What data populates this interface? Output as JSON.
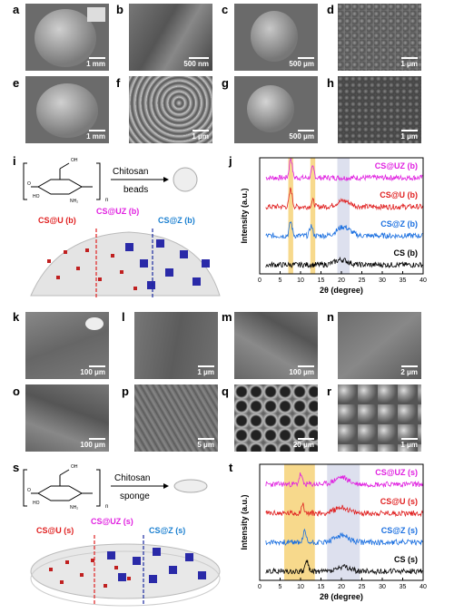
{
  "panel_letters": {
    "a": "a",
    "b": "b",
    "c": "c",
    "d": "d",
    "e": "e",
    "f": "f",
    "g": "g",
    "h": "h",
    "i": "i",
    "j": "j",
    "k": "k",
    "l": "l",
    "m": "m",
    "n": "n",
    "o": "o",
    "p": "p",
    "q": "q",
    "r": "r",
    "s": "s",
    "t": "t"
  },
  "scale_bars": {
    "a": "1 mm",
    "b": "500 nm",
    "c": "500 μm",
    "d": "1 μm",
    "e": "1 mm",
    "f": "1 μm",
    "g": "500 μm",
    "h": "1 μm",
    "k": "100 μm",
    "l": "1 μm",
    "m": "100 μm",
    "n": "2 μm",
    "o": "100 μm",
    "p": "5 μm",
    "q": "20 μm",
    "r": "1 μm"
  },
  "schematic_i": {
    "arrow_label": "Chitosan",
    "product": "beads",
    "left": "CS@U (b)",
    "middle": "CS@UZ (b)",
    "right": "CS@Z (b)",
    "colors": {
      "left": "#e02020",
      "middle": "#e020e0",
      "right": "#1a7fd0"
    }
  },
  "schematic_s": {
    "arrow_label": "Chitosan",
    "product": "sponge",
    "left": "CS@U (s)",
    "middle": "CS@UZ (s)",
    "right": "CS@Z (s)",
    "colors": {
      "left": "#e02020",
      "middle": "#e020e0",
      "right": "#1a7fd0"
    }
  },
  "chart_data": [
    {
      "panel": "j",
      "type": "line",
      "xlabel": "2θ (degree)",
      "ylabel": "Intensity (a.u.)",
      "xlim": [
        0,
        40
      ],
      "x_ticks": [
        0,
        5,
        10,
        15,
        20,
        25,
        30,
        35,
        40
      ],
      "highlight_bands": [
        {
          "from": 7,
          "to": 8.2,
          "color": "#f7d98c"
        },
        {
          "from": 12.4,
          "to": 13.6,
          "color": "#f7d98c"
        },
        {
          "from": 19,
          "to": 22,
          "color": "#dde0ee"
        }
      ],
      "series": [
        {
          "name": "CS@UZ (b)",
          "color": "#e020e0",
          "offset": 3,
          "peaks": [
            [
              7.6,
              1.0
            ],
            [
              13,
              0.5
            ]
          ]
        },
        {
          "name": "CS@U (b)",
          "color": "#e02020",
          "offset": 2,
          "peaks": [
            [
              7.6,
              0.9
            ],
            [
              13,
              0.3
            ],
            [
              20.5,
              0.3
            ]
          ]
        },
        {
          "name": "CS@Z (b)",
          "color": "#1a6fe0",
          "offset": 1,
          "peaks": [
            [
              7.6,
              0.7
            ],
            [
              12.6,
              0.5
            ],
            [
              20.5,
              0.45
            ]
          ]
        },
        {
          "name": "CS (b)",
          "color": "#000000",
          "offset": 0,
          "peaks": [
            [
              20,
              0.25
            ]
          ]
        }
      ]
    },
    {
      "panel": "t",
      "type": "line",
      "xlabel": "2θ (degree)",
      "ylabel": "Intensity (a.u.)",
      "xlim": [
        0,
        40
      ],
      "x_ticks": [
        0,
        5,
        10,
        15,
        20,
        25,
        30,
        35,
        40
      ],
      "highlight_bands": [
        {
          "from": 6,
          "to": 13.5,
          "color": "#f7d98c"
        },
        {
          "from": 16.5,
          "to": 24.5,
          "color": "#dde0ee"
        }
      ],
      "series": [
        {
          "name": "CS@UZ (s)",
          "color": "#e020e0",
          "offset": 3,
          "peaks": [
            [
              10,
              0.5
            ],
            [
              20,
              0.35
            ]
          ]
        },
        {
          "name": "CS@U (s)",
          "color": "#e02020",
          "offset": 2,
          "peaks": [
            [
              10.5,
              0.45
            ],
            [
              20,
              0.3
            ]
          ]
        },
        {
          "name": "CS@Z (s)",
          "color": "#1a6fe0",
          "offset": 1,
          "peaks": [
            [
              11,
              0.55
            ],
            [
              20,
              0.35
            ]
          ]
        },
        {
          "name": "CS (s)",
          "color": "#000000",
          "offset": 0,
          "peaks": [
            [
              11.5,
              0.55
            ],
            [
              20.5,
              0.2
            ]
          ]
        }
      ]
    }
  ]
}
